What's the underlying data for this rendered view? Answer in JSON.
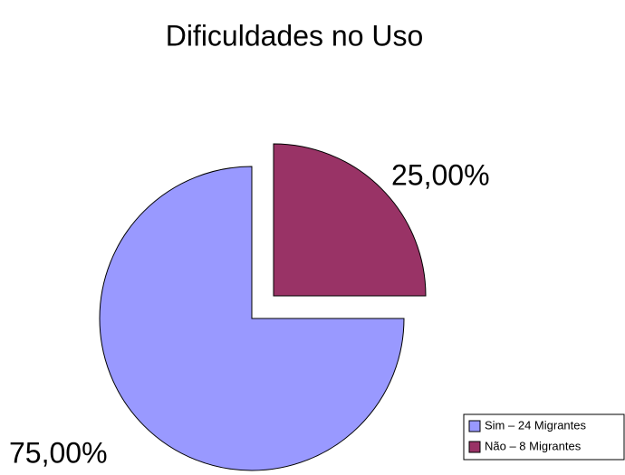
{
  "chart_data": {
    "type": "pie",
    "title": "Dificuldades no Uso",
    "categories": [
      "Sim – 24 Migrantes",
      "Não – 8 Migrantes"
    ],
    "values": [
      75,
      25
    ],
    "value_labels": [
      "75,00%",
      "25,00%"
    ],
    "colors": [
      "#9999ff",
      "#993366"
    ],
    "legend": "bottom-right"
  }
}
